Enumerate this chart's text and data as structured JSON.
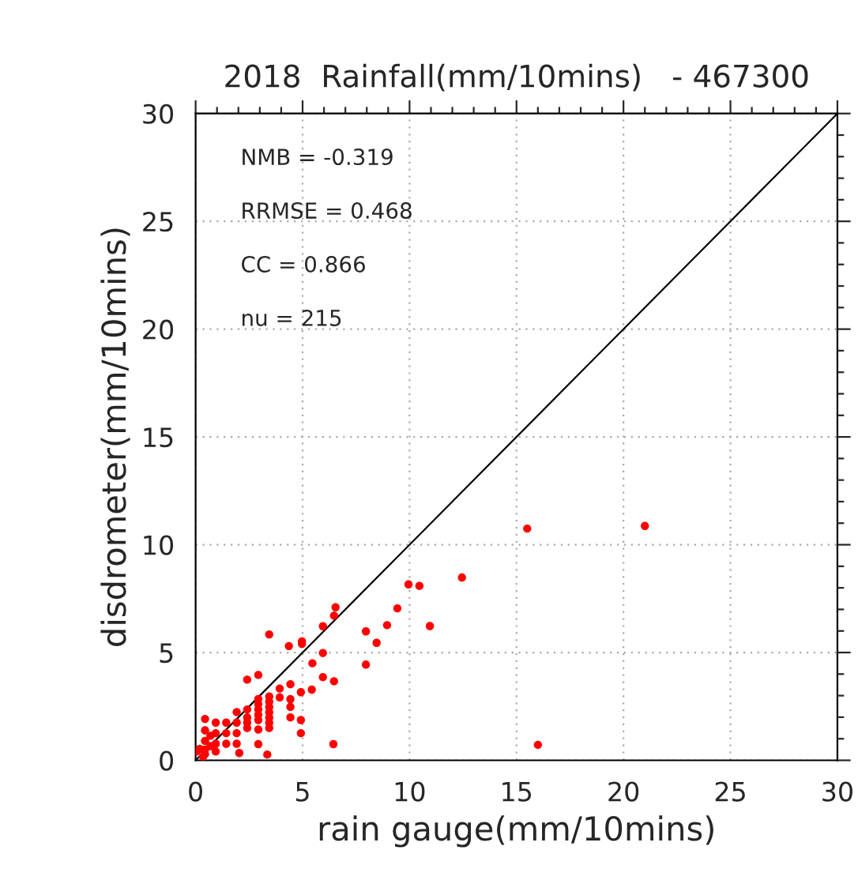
{
  "chart_data": {
    "type": "scatter",
    "title": "2018  Rainfall(mm/10mins)   - 467300",
    "xlabel": "rain gauge(mm/10mins)",
    "ylabel": "disdrometer(mm/10mins)",
    "xlim": [
      0,
      30
    ],
    "ylim": [
      0,
      30
    ],
    "xticks": [
      0,
      5,
      10,
      15,
      20,
      25,
      30
    ],
    "yticks": [
      0,
      5,
      10,
      15,
      20,
      25,
      30
    ],
    "grid": true,
    "annotations": [
      "NMB = -0.319",
      "RRMSE = 0.468",
      "CC = 0.866",
      "nu = 215"
    ],
    "series": [
      {
        "marker": "circle",
        "color": "#ff0000",
        "x": [
          15.5,
          21.0,
          16.0,
          9.95,
          10.46,
          12.45,
          9.43,
          10.95,
          8.95,
          8.46,
          7.96,
          7.96,
          6.54,
          6.47,
          5.95,
          5.95,
          5.95,
          6.47,
          6.44,
          5.46,
          5.43,
          4.97,
          4.97,
          4.92,
          4.92,
          4.92,
          4.43,
          4.43,
          4.43,
          4.43,
          4.36,
          3.93,
          3.93,
          3.44,
          3.44,
          3.44,
          3.44,
          3.44,
          3.44,
          3.44,
          3.44,
          3.35,
          2.93,
          2.93,
          2.93,
          2.93,
          2.93,
          2.93,
          2.93,
          2.93,
          2.41,
          2.41,
          2.41,
          2.41,
          2.41,
          1.92,
          1.92,
          1.92,
          1.92,
          2.04,
          1.43,
          1.43,
          1.43,
          0.94,
          0.94,
          0.94,
          0.94,
          0.44,
          0.44,
          0.44,
          0.44,
          0.44,
          0.2,
          0.05,
          0.69,
          0.69,
          0.35
        ],
        "values": [
          10.75,
          10.87,
          0.72,
          8.16,
          8.09,
          8.48,
          7.05,
          6.23,
          6.27,
          5.45,
          5.98,
          4.44,
          7.1,
          6.71,
          6.22,
          4.98,
          3.86,
          3.67,
          0.75,
          4.5,
          3.28,
          5.52,
          5.4,
          3.16,
          1.87,
          1.26,
          3.53,
          2.84,
          2.48,
          1.99,
          5.3,
          3.33,
          2.92,
          5.84,
          2.96,
          2.72,
          2.47,
          2.23,
          1.98,
          1.74,
          1.5,
          0.27,
          3.96,
          2.84,
          2.6,
          2.36,
          2.11,
          1.87,
          1.43,
          0.75,
          3.74,
          2.36,
          1.99,
          1.75,
          1.5,
          2.24,
          1.75,
          1.26,
          0.77,
          0.34,
          1.75,
          1.26,
          0.77,
          1.75,
          1.26,
          0.77,
          0.41,
          1.92,
          1.39,
          0.9,
          0.5,
          0.29,
          0.53,
          0.41,
          1.14,
          0.66,
          0.17
        ]
      },
      {
        "type": "line",
        "color": "#000000",
        "x": [
          0,
          30
        ],
        "values": [
          0,
          30
        ]
      }
    ]
  }
}
